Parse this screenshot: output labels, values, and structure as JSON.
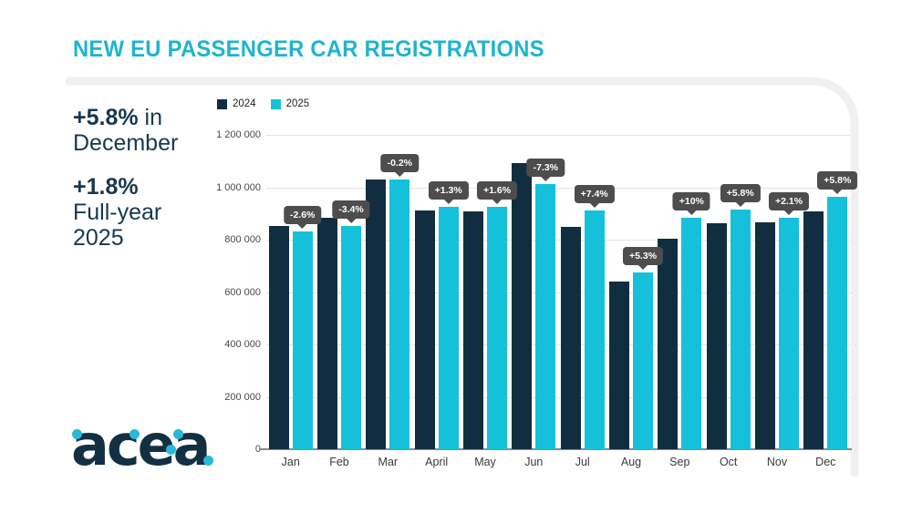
{
  "title": "NEW EU PASSENGER CAR REGISTRATIONS",
  "colors": {
    "title_accent": "#1db4d1",
    "navy": "#112e40",
    "cyan": "#15c1da",
    "stat_text": "#16384f",
    "tooltip_bg": "#4d4d4d",
    "logo_navy": "#133042",
    "logo_dot_cyan": "#29b8d8"
  },
  "stats": {
    "month_value": "+5.8%",
    "month_suffix": " in",
    "month_period": "December",
    "fullyear_value": "+1.8%",
    "fullyear_line1": "Full-year",
    "fullyear_line2": "2025"
  },
  "logo": {
    "text": "acea"
  },
  "chart_data": {
    "type": "bar",
    "title": "NEW EU PASSENGER CAR REGISTRATIONS",
    "xlabel": "",
    "ylabel": "",
    "grid": true,
    "legend_position": "top-left",
    "ylim": [
      0,
      1200000
    ],
    "ytick_values": [
      0,
      200000,
      400000,
      600000,
      800000,
      1000000,
      1200000
    ],
    "ytick_labels": [
      "0",
      "200 000",
      "400 000",
      "600 000",
      "800 000",
      "1 000 000",
      "1 200 000"
    ],
    "categories": [
      "Jan",
      "Feb",
      "Mar",
      "April",
      "May",
      "Jun",
      "Jul",
      "Aug",
      "Sep",
      "Oct",
      "Nov",
      "Dec"
    ],
    "series": [
      {
        "name": "2024",
        "color": "#112e40",
        "values": [
          852000,
          884000,
          1031000,
          912000,
          909000,
          1091000,
          850000,
          640000,
          804000,
          864000,
          866000,
          909000
        ]
      },
      {
        "name": "2025",
        "color": "#15c1da",
        "values": [
          830000,
          854000,
          1029000,
          924000,
          924000,
          1011000,
          913000,
          674000,
          884000,
          914000,
          884000,
          962000
        ]
      }
    ],
    "change_labels": [
      "-2.6%",
      "-3.4%",
      "-0.2%",
      "+1.3%",
      "+1.6%",
      "-7.3%",
      "+7.4%",
      "+5.3%",
      "+10%",
      "+5.8%",
      "+2.1%",
      "+5.8%"
    ]
  }
}
